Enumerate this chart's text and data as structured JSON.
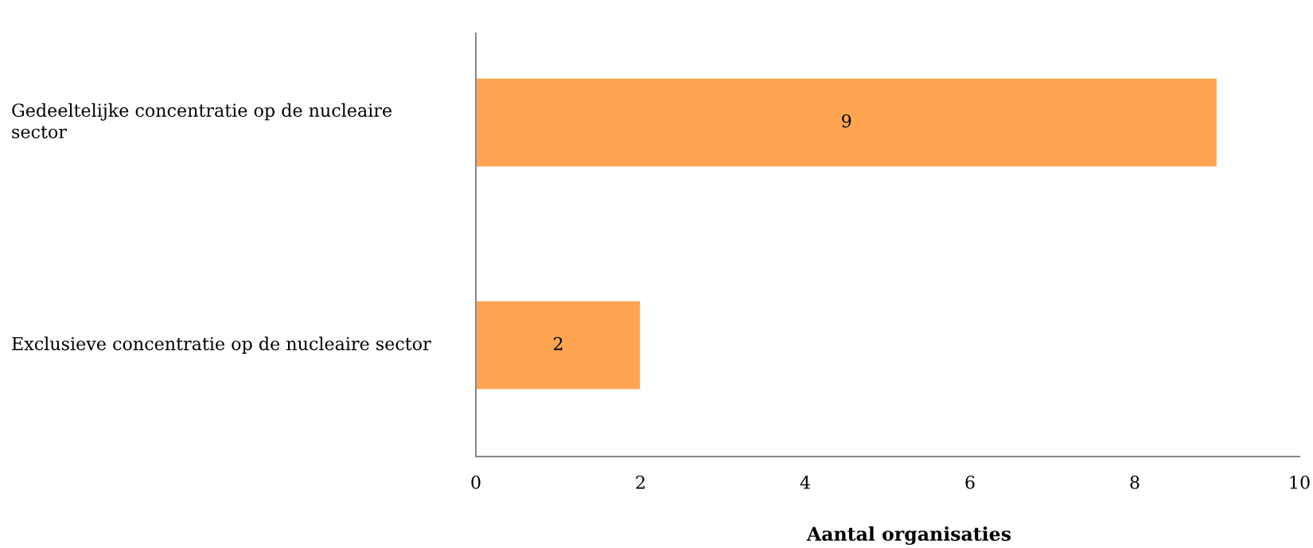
{
  "chart_data": {
    "type": "bar",
    "orientation": "horizontal",
    "categories": [
      "Gedeeltelijke concentratie op de nucleaire sector",
      "Exclusieve concentratie op de nucleaire sector"
    ],
    "values": [
      9,
      2
    ],
    "color": "#ffa552",
    "xlim": [
      0,
      10
    ],
    "xticks": [
      0,
      2,
      4,
      6,
      8,
      10
    ],
    "xlabel": "Aantal organisaties",
    "data_labels": true,
    "grid": false
  }
}
